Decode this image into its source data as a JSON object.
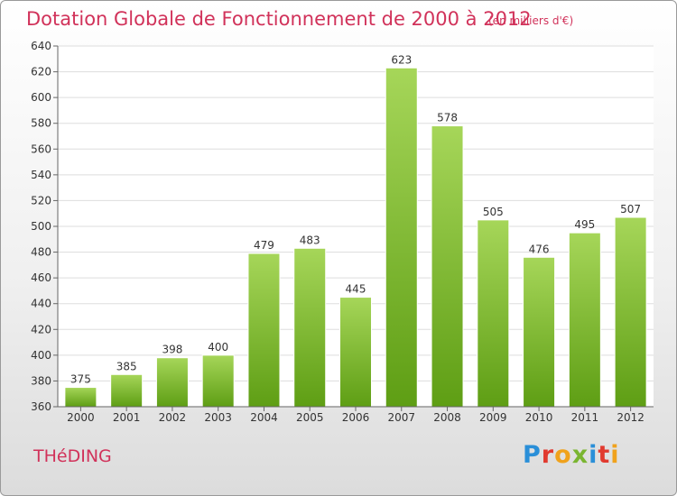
{
  "title": "Dotation Globale de Fonctionnement de 2000 à 2012",
  "subtitle": "(en milliers d'€)",
  "commune": "THéDING",
  "logo": {
    "text": "Proxiti",
    "colors": [
      "#2a8fd8",
      "#e13a2f",
      "#f0a21c",
      "#7ab530",
      "#2a8fd8",
      "#e13a2f",
      "#f0a21c"
    ]
  },
  "colors": {
    "title": "#d1325a",
    "bar_light": "#a6d659",
    "bar_dark": "#5e9e14",
    "grid": "#dddddd"
  },
  "chart_data": {
    "type": "bar",
    "title": "Dotation Globale de Fonctionnement de 2000 à 2012",
    "subtitle": "(en milliers d'€)",
    "categories": [
      "2000",
      "2001",
      "2002",
      "2003",
      "2004",
      "2005",
      "2006",
      "2007",
      "2008",
      "2009",
      "2010",
      "2011",
      "2012"
    ],
    "values": [
      375,
      385,
      398,
      400,
      479,
      483,
      445,
      623,
      578,
      505,
      476,
      495,
      507
    ],
    "ylim": [
      360,
      640
    ],
    "yticks": [
      360,
      380,
      400,
      420,
      440,
      460,
      480,
      500,
      520,
      540,
      560,
      580,
      600,
      620,
      640
    ],
    "grid": true,
    "data_labels": true
  }
}
